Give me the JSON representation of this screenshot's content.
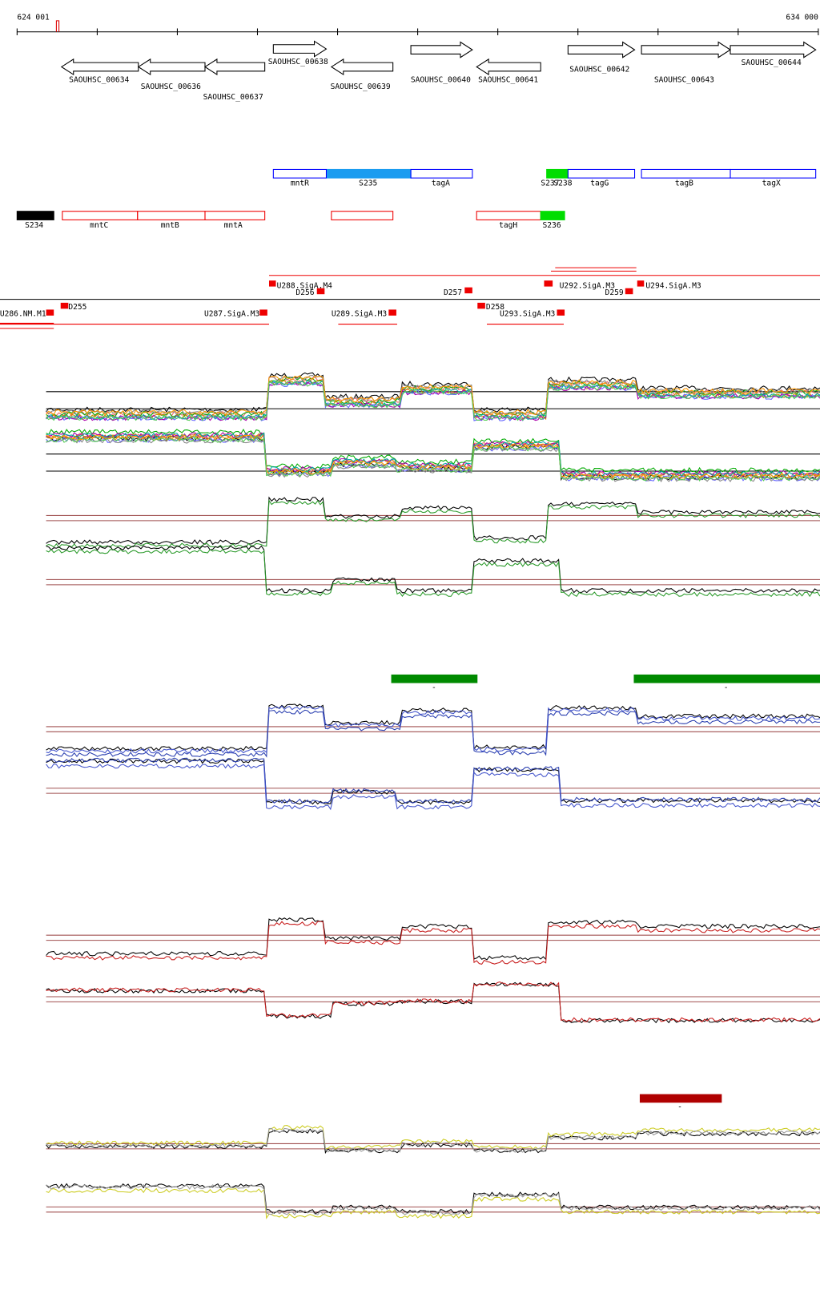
{
  "ruler": {
    "start": "624 001",
    "end": "634 000"
  },
  "genes": [
    {
      "label": "SAOUHSC_00634"
    },
    {
      "label": "SAOUHSC_00636"
    },
    {
      "label": "SAOUHSC_00637"
    },
    {
      "label": "SAOUHSC_00638"
    },
    {
      "label": "SAOUHSC_00639"
    },
    {
      "label": "SAOUHSC_00640"
    },
    {
      "label": "SAOUHSC_00641"
    },
    {
      "label": "SAOUHSC_00642"
    },
    {
      "label": "SAOUHSC_00643"
    },
    {
      "label": "SAOUHSC_00644"
    }
  ],
  "features_top": [
    {
      "label": "mntR"
    },
    {
      "label": "S235"
    },
    {
      "label": "tagA"
    },
    {
      "label": "S237"
    },
    {
      "label": "S238"
    },
    {
      "label": "tagG"
    },
    {
      "label": "tagB"
    },
    {
      "label": "tagX"
    }
  ],
  "features_bottom": [
    {
      "label": "S234"
    },
    {
      "label": "mntC"
    },
    {
      "label": "mntB"
    },
    {
      "label": "mntA"
    },
    {
      "label": "tagH"
    },
    {
      "label": "S236"
    }
  ],
  "sites": [
    {
      "label": "U286.NM.M1"
    },
    {
      "label": "D255"
    },
    {
      "label": "U287.SigA.M3"
    },
    {
      "label": "U288.SigA.M4"
    },
    {
      "label": "D256"
    },
    {
      "label": "U289.SigA.M3"
    },
    {
      "label": "D257"
    },
    {
      "label": "D258"
    },
    {
      "label": "U293.SigA.M3"
    },
    {
      "label": "U292.SigA.M3"
    },
    {
      "label": "D259"
    },
    {
      "label": "U294.SigA.M3"
    }
  ],
  "region_marks": [
    {
      "label": "-"
    },
    {
      "label": "-"
    },
    {
      "label": "-"
    }
  ]
}
